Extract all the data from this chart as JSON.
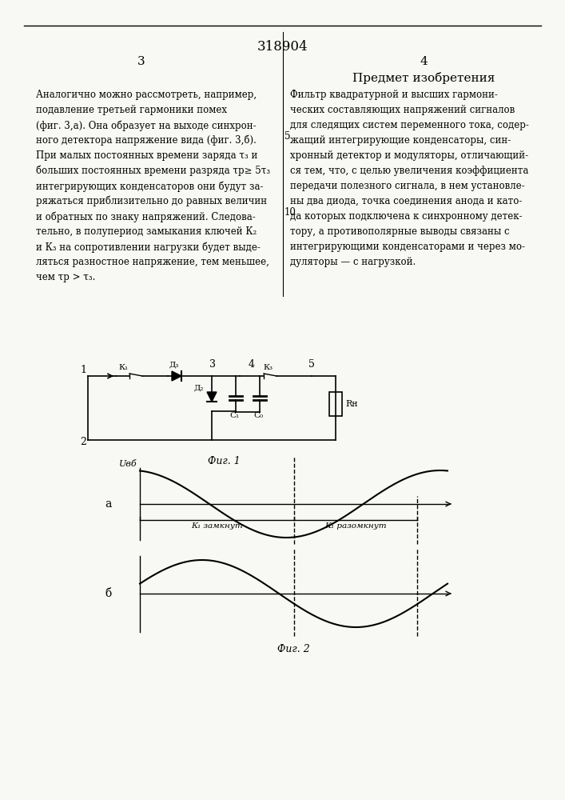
{
  "patent_number": "318904",
  "page_left": "3",
  "page_right": "4",
  "section_title": "Предмет изобретения",
  "left_text": [
    "Аналогично можно рассмотреть, например,",
    "подавление третьей гармоники помех",
    "(фиг. 3,а). Она образует на выходе синхрон-",
    "ного детектора напряжение вида (фиг. 3,б).",
    "При малых постоянных времени заряда τ₃ и",
    "больших постоянных времени разряда τр≥ 5τ₃",
    "интегрирующих конденсаторов они будут за-",
    "ряжаться приблизительно до равных величин",
    "и обратных по знаку напряжений. Следова-",
    "тельно, в полупериод замыкания ключей К₂",
    "и К₃ на сопротивлении нагрузки будет выде-",
    "ляться разностное напряжение, тем меньшее,",
    "чем τр > τ₃."
  ],
  "right_text": [
    "Фильтр квадратурной и высших гармони-",
    "ческих составляющих напряжений сигналов",
    "для следящих систем переменного тока, содер-",
    "жащий интегрирующие конденсаторы, син-",
    "хронный детектор и модуляторы, отличающий-",
    "ся тем, что, с целью увеличения коэффициента",
    "передачи полезного сигнала, в нем установле-",
    "ны два диода, точка соединения анода и като-",
    "да которых подключена к синхронному детек-",
    "тору, а противополярные выводы связаны с",
    "интегрирующими конденсаторами и через мо-",
    "дуляторы — с нагрузкой."
  ],
  "line_number_5": "5",
  "line_number_10": "10",
  "fig1_label": "Фиг. 1",
  "fig2_label": "Фиг. 2",
  "label_a": "а",
  "label_b": "б",
  "label_Uвб": "Uвб",
  "label_K1_zamknut": "К₁ замкнут",
  "label_K1_razoмknut": "К₁ разомкнут",
  "bg_color": "#f5f5f0"
}
